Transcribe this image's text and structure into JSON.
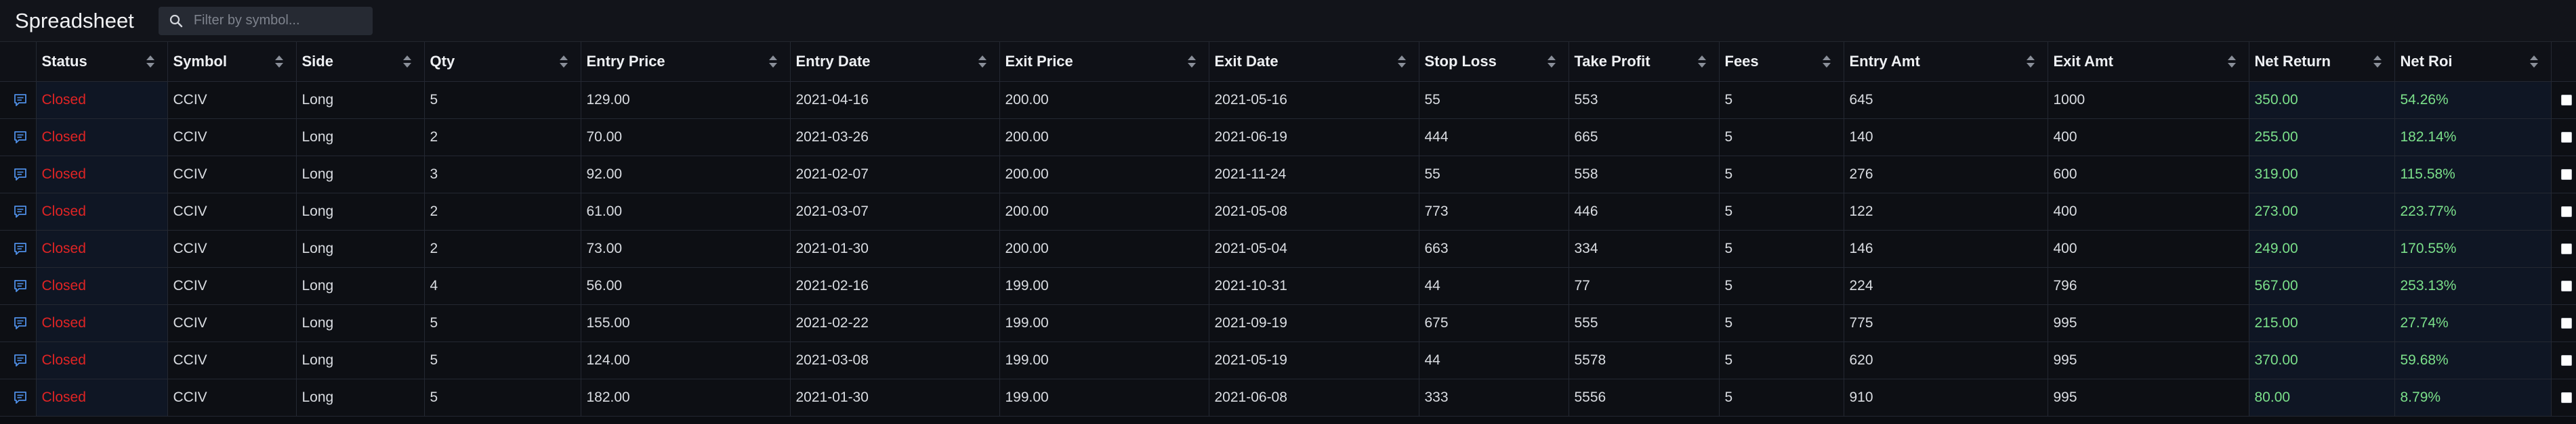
{
  "app": {
    "title": "Spreadsheet"
  },
  "search": {
    "placeholder": "Filter by symbol..."
  },
  "colors": {
    "closed": "#e02424",
    "positive": "#7be08a",
    "background": "#0b0d12"
  },
  "icons": {
    "comment": "comment-icon",
    "sort": "sort-icon",
    "search": "search-icon"
  },
  "columns": [
    "Status",
    "Symbol",
    "Side",
    "Qty",
    "Entry Price",
    "Entry Date",
    "Exit Price",
    "Exit Date",
    "Stop Loss",
    "Take Profit",
    "Fees",
    "Entry Amt",
    "Exit Amt",
    "Net Return",
    "Net Roi"
  ],
  "rows": [
    [
      "Closed",
      "CCIV",
      "Long",
      "5",
      "129.00",
      "2021-04-16",
      "200.00",
      "2021-05-16",
      "55",
      "553",
      "5",
      "645",
      "1000",
      "350.00",
      "54.26%"
    ],
    [
      "Closed",
      "CCIV",
      "Long",
      "2",
      "70.00",
      "2021-03-26",
      "200.00",
      "2021-06-19",
      "444",
      "665",
      "5",
      "140",
      "400",
      "255.00",
      "182.14%"
    ],
    [
      "Closed",
      "CCIV",
      "Long",
      "3",
      "92.00",
      "2021-02-07",
      "200.00",
      "2021-11-24",
      "55",
      "558",
      "5",
      "276",
      "600",
      "319.00",
      "115.58%"
    ],
    [
      "Closed",
      "CCIV",
      "Long",
      "2",
      "61.00",
      "2021-03-07",
      "200.00",
      "2021-05-08",
      "773",
      "446",
      "5",
      "122",
      "400",
      "273.00",
      "223.77%"
    ],
    [
      "Closed",
      "CCIV",
      "Long",
      "2",
      "73.00",
      "2021-01-30",
      "200.00",
      "2021-05-04",
      "663",
      "334",
      "5",
      "146",
      "400",
      "249.00",
      "170.55%"
    ],
    [
      "Closed",
      "CCIV",
      "Long",
      "4",
      "56.00",
      "2021-02-16",
      "199.00",
      "2021-10-31",
      "44",
      "77",
      "5",
      "224",
      "796",
      "567.00",
      "253.13%"
    ],
    [
      "Closed",
      "CCIV",
      "Long",
      "5",
      "155.00",
      "2021-02-22",
      "199.00",
      "2021-09-19",
      "675",
      "555",
      "5",
      "775",
      "995",
      "215.00",
      "27.74%"
    ],
    [
      "Closed",
      "CCIV",
      "Long",
      "5",
      "124.00",
      "2021-03-08",
      "199.00",
      "2021-05-19",
      "44",
      "5578",
      "5",
      "620",
      "995",
      "370.00",
      "59.68%"
    ],
    [
      "Closed",
      "CCIV",
      "Long",
      "5",
      "182.00",
      "2021-01-30",
      "199.00",
      "2021-06-08",
      "333",
      "5556",
      "5",
      "910",
      "995",
      "80.00",
      "8.79%"
    ]
  ]
}
